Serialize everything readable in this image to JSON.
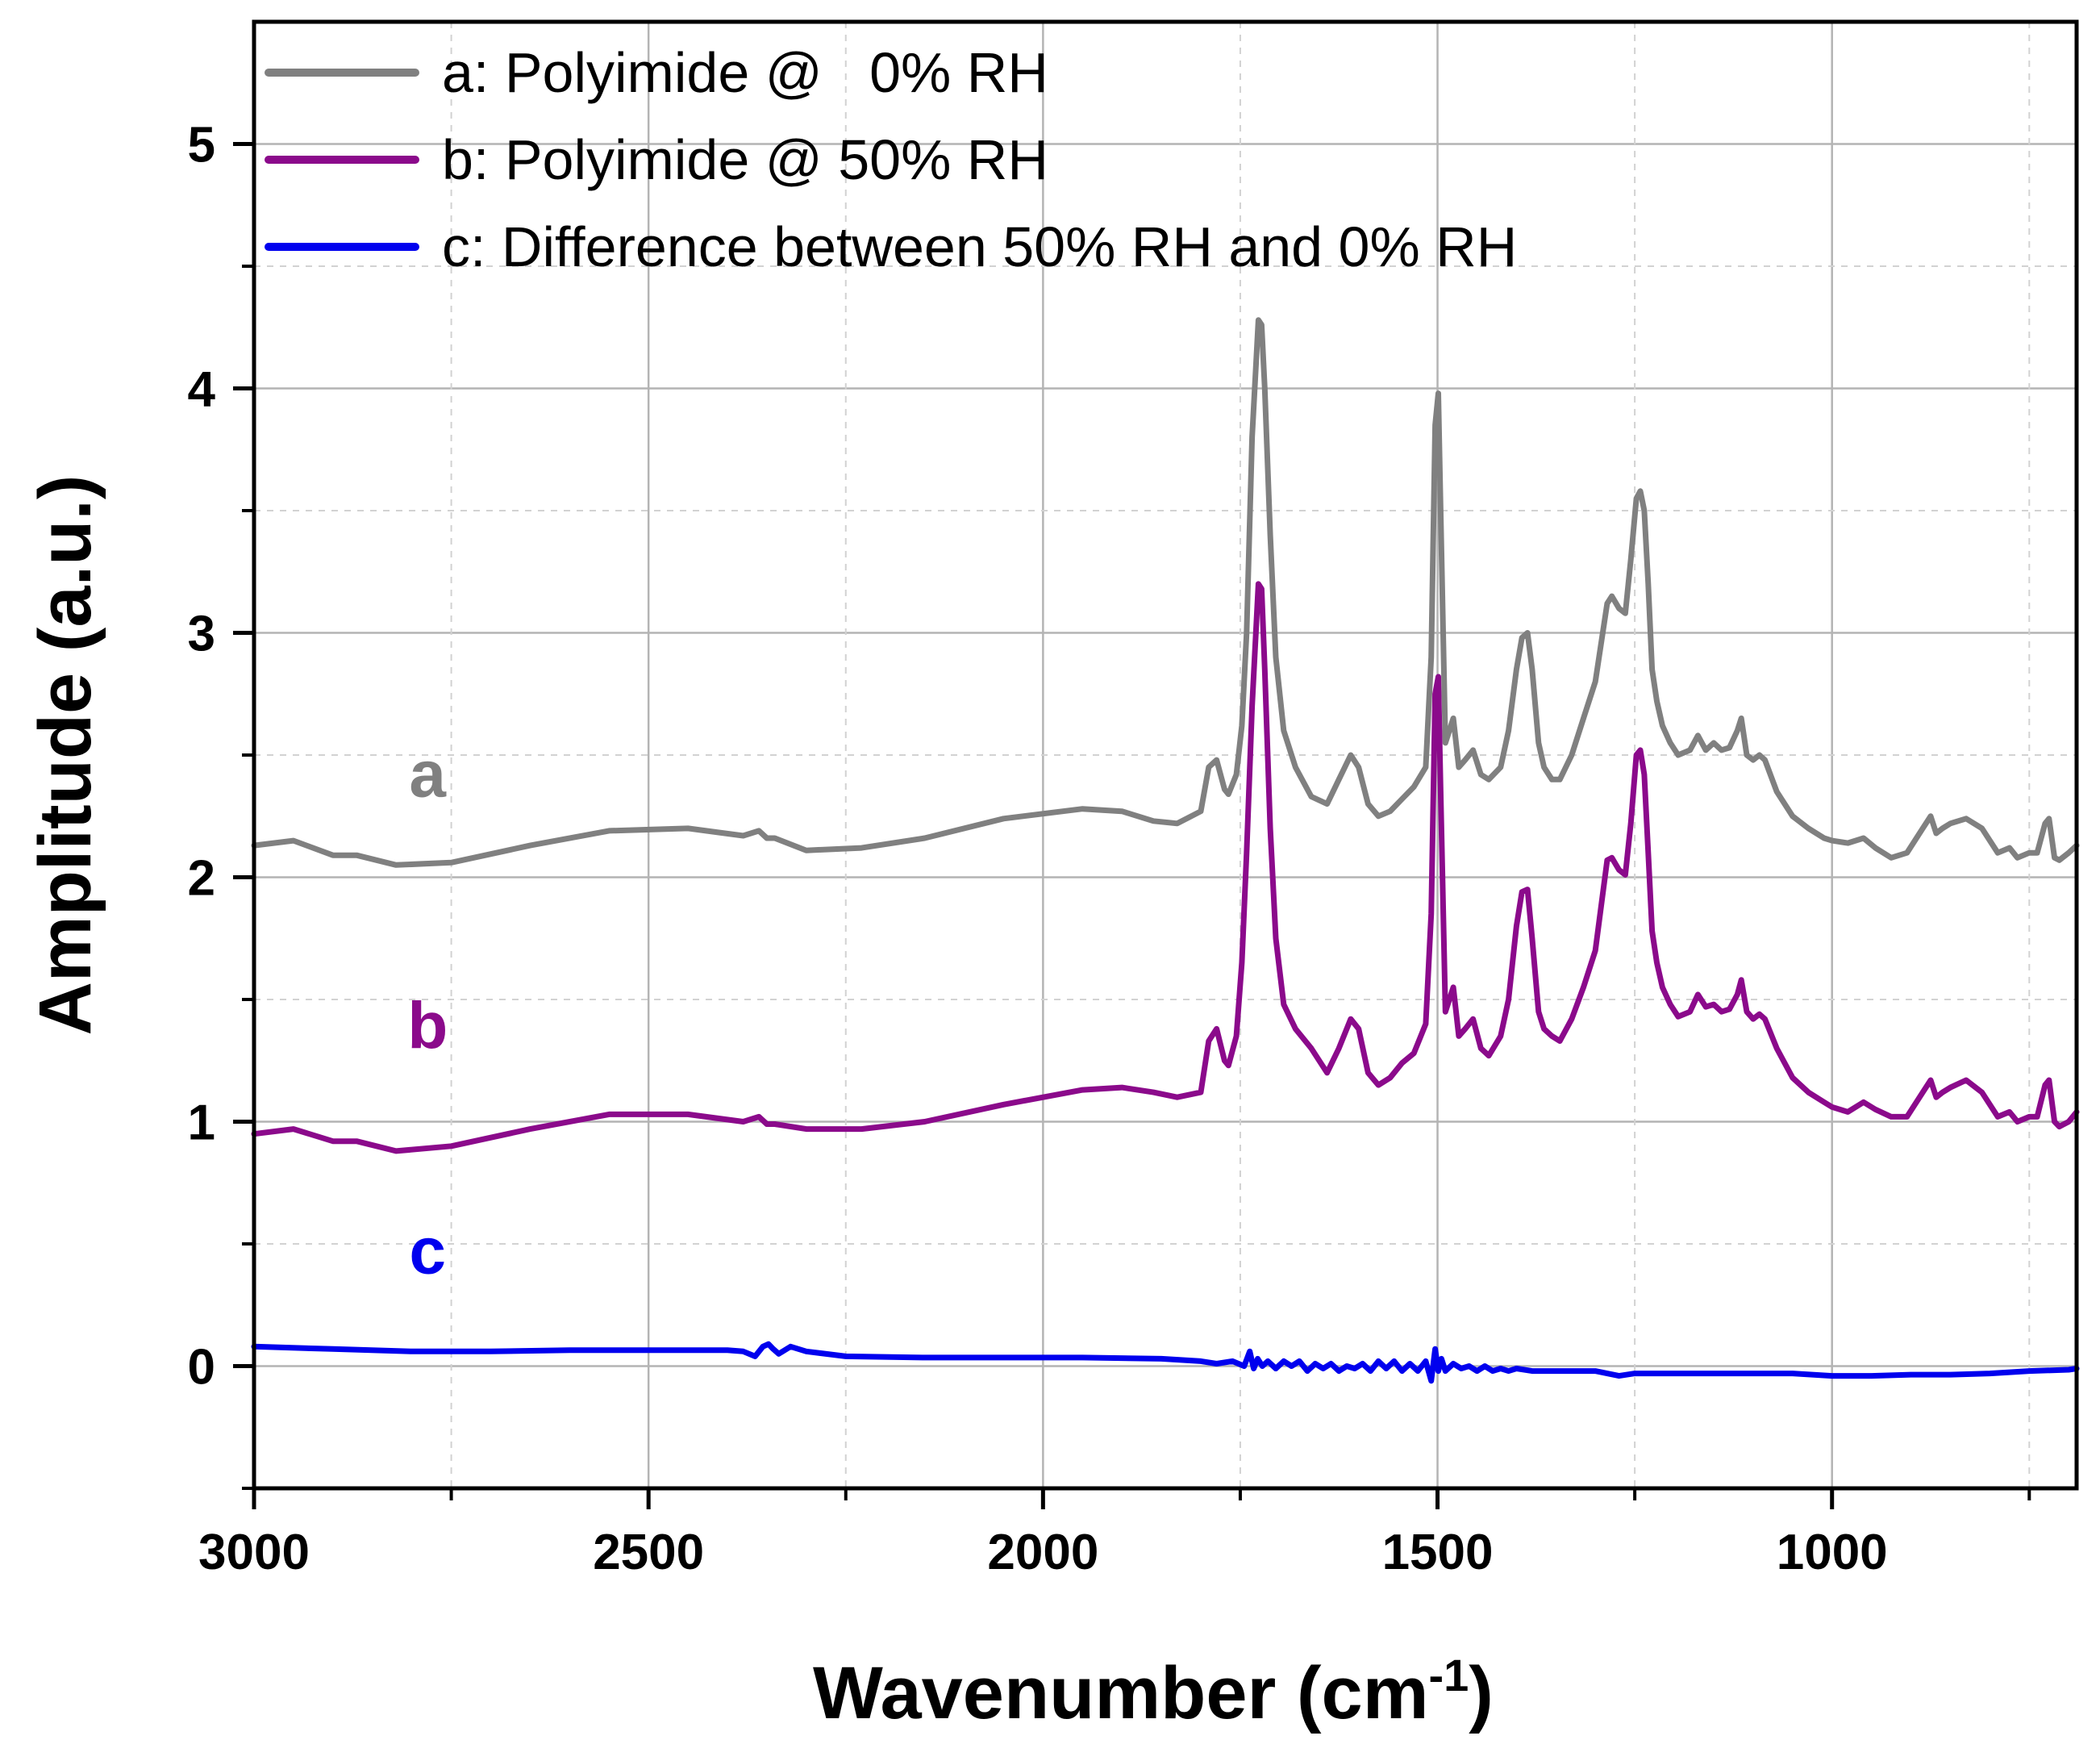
{
  "colors": {
    "a": "#808080",
    "b": "#8b0a8b",
    "c": "#0000ee",
    "grid": "#b4b4b4"
  },
  "chart_data": {
    "type": "line",
    "xlabel": "Wavenumber (cm",
    "xlabel_sup": "-1",
    "xlabel_end": ")",
    "ylabel": "Amplitude (a.u.)",
    "xlim": [
      3000,
      690
    ],
    "ylim": [
      -0.5,
      5.5
    ],
    "xticks": [
      3000,
      2500,
      2000,
      1500,
      1000
    ],
    "xtick_labels": [
      "3000",
      "2500",
      "2000",
      "1500",
      "1000"
    ],
    "yticks": [
      0,
      1,
      2,
      3,
      4,
      5
    ],
    "ytick_labels": [
      "0",
      "1",
      "2",
      "3",
      "4",
      "5"
    ],
    "grid": true,
    "legend_position": "top-left",
    "series": [
      {
        "name": "a",
        "label": "a: Polyimide @   0% RH",
        "color": "#808080",
        "x": [
          3000,
          2950,
          2900,
          2870,
          2820,
          2750,
          2650,
          2550,
          2450,
          2380,
          2360,
          2350,
          2340,
          2300,
          2230,
          2150,
          2050,
          1950,
          1900,
          1860,
          1830,
          1800,
          1790,
          1780,
          1770,
          1765,
          1755,
          1748,
          1742,
          1735,
          1727,
          1723,
          1719,
          1712,
          1705,
          1695,
          1680,
          1660,
          1640,
          1625,
          1610,
          1600,
          1588,
          1575,
          1560,
          1545,
          1530,
          1515,
          1508,
          1503,
          1499,
          1496,
          1490,
          1485,
          1480,
          1473,
          1465,
          1455,
          1445,
          1435,
          1420,
          1410,
          1400,
          1393,
          1386,
          1380,
          1372,
          1365,
          1355,
          1345,
          1330,
          1315,
          1300,
          1285,
          1279,
          1270,
          1262,
          1255,
          1248,
          1243,
          1238,
          1233,
          1228,
          1222,
          1215,
          1205,
          1195,
          1180,
          1170,
          1160,
          1150,
          1140,
          1130,
          1120,
          1115,
          1108,
          1100,
          1092,
          1085,
          1070,
          1050,
          1030,
          1010,
          1000,
          980,
          960,
          945,
          925,
          905,
          885,
          875,
          868,
          860,
          850,
          830,
          810,
          790,
          775,
          765,
          750,
          740,
          730,
          725,
          718,
          712,
          700,
          690
        ],
        "y": [
          2.13,
          2.15,
          2.09,
          2.09,
          2.05,
          2.06,
          2.13,
          2.19,
          2.2,
          2.17,
          2.19,
          2.16,
          2.16,
          2.11,
          2.12,
          2.16,
          2.24,
          2.28,
          2.27,
          2.23,
          2.22,
          2.27,
          2.45,
          2.48,
          2.36,
          2.34,
          2.42,
          2.62,
          3.0,
          3.8,
          4.28,
          4.26,
          4.0,
          3.4,
          2.9,
          2.6,
          2.45,
          2.33,
          2.3,
          2.4,
          2.5,
          2.45,
          2.3,
          2.25,
          2.27,
          2.32,
          2.37,
          2.45,
          2.9,
          3.85,
          3.98,
          3.5,
          2.55,
          2.6,
          2.65,
          2.45,
          2.48,
          2.52,
          2.42,
          2.4,
          2.45,
          2.6,
          2.85,
          2.98,
          3.0,
          2.85,
          2.55,
          2.45,
          2.4,
          2.4,
          2.5,
          2.65,
          2.8,
          3.12,
          3.15,
          3.1,
          3.08,
          3.3,
          3.55,
          3.58,
          3.5,
          3.2,
          2.85,
          2.72,
          2.62,
          2.55,
          2.5,
          2.52,
          2.58,
          2.52,
          2.55,
          2.52,
          2.53,
          2.6,
          2.65,
          2.5,
          2.48,
          2.5,
          2.48,
          2.35,
          2.25,
          2.2,
          2.16,
          2.15,
          2.14,
          2.16,
          2.12,
          2.08,
          2.1,
          2.2,
          2.25,
          2.18,
          2.2,
          2.22,
          2.24,
          2.2,
          2.1,
          2.12,
          2.08,
          2.1,
          2.1,
          2.22,
          2.24,
          2.08,
          2.07,
          2.1,
          2.13
        ]
      },
      {
        "name": "b",
        "label": "b: Polyimide @ 50% RH",
        "color": "#8b0a8b",
        "x": [
          3000,
          2950,
          2900,
          2870,
          2820,
          2750,
          2650,
          2550,
          2450,
          2380,
          2360,
          2350,
          2340,
          2300,
          2230,
          2150,
          2050,
          1950,
          1900,
          1860,
          1830,
          1800,
          1790,
          1780,
          1770,
          1765,
          1755,
          1748,
          1742,
          1735,
          1727,
          1723,
          1719,
          1712,
          1705,
          1695,
          1680,
          1660,
          1640,
          1625,
          1610,
          1600,
          1588,
          1575,
          1560,
          1545,
          1530,
          1515,
          1508,
          1503,
          1499,
          1496,
          1490,
          1485,
          1480,
          1473,
          1465,
          1455,
          1445,
          1435,
          1420,
          1410,
          1400,
          1393,
          1386,
          1380,
          1372,
          1365,
          1355,
          1345,
          1330,
          1315,
          1300,
          1285,
          1279,
          1270,
          1262,
          1255,
          1248,
          1243,
          1238,
          1233,
          1228,
          1222,
          1215,
          1205,
          1195,
          1180,
          1170,
          1160,
          1150,
          1140,
          1130,
          1120,
          1115,
          1108,
          1100,
          1092,
          1085,
          1070,
          1050,
          1030,
          1010,
          1000,
          980,
          960,
          945,
          925,
          905,
          885,
          875,
          868,
          860,
          850,
          830,
          810,
          790,
          775,
          765,
          750,
          740,
          730,
          725,
          718,
          712,
          700,
          690
        ],
        "y": [
          0.95,
          0.97,
          0.92,
          0.92,
          0.88,
          0.9,
          0.97,
          1.03,
          1.03,
          1.0,
          1.02,
          0.99,
          0.99,
          0.97,
          0.97,
          1.0,
          1.07,
          1.13,
          1.14,
          1.12,
          1.1,
          1.12,
          1.33,
          1.38,
          1.25,
          1.23,
          1.35,
          1.65,
          2.1,
          2.7,
          3.2,
          3.18,
          2.85,
          2.2,
          1.75,
          1.48,
          1.38,
          1.3,
          1.2,
          1.3,
          1.42,
          1.38,
          1.2,
          1.15,
          1.18,
          1.24,
          1.28,
          1.4,
          1.85,
          2.75,
          2.82,
          2.35,
          1.45,
          1.5,
          1.55,
          1.35,
          1.38,
          1.42,
          1.3,
          1.27,
          1.35,
          1.5,
          1.8,
          1.94,
          1.95,
          1.75,
          1.45,
          1.38,
          1.35,
          1.33,
          1.42,
          1.55,
          1.7,
          2.07,
          2.08,
          2.03,
          2.01,
          2.22,
          2.5,
          2.52,
          2.42,
          2.1,
          1.78,
          1.65,
          1.55,
          1.48,
          1.43,
          1.45,
          1.52,
          1.47,
          1.48,
          1.45,
          1.46,
          1.52,
          1.58,
          1.45,
          1.42,
          1.44,
          1.42,
          1.3,
          1.18,
          1.12,
          1.08,
          1.06,
          1.04,
          1.08,
          1.05,
          1.02,
          1.02,
          1.12,
          1.17,
          1.1,
          1.12,
          1.14,
          1.17,
          1.12,
          1.02,
          1.04,
          1.0,
          1.02,
          1.02,
          1.15,
          1.17,
          1.0,
          0.98,
          1.0,
          1.04
        ]
      },
      {
        "name": "c",
        "label": "c: Difference between 50% RH and 0% RH",
        "color": "#0000ee",
        "x": [
          3000,
          2900,
          2800,
          2700,
          2600,
          2500,
          2400,
          2380,
          2365,
          2355,
          2348,
          2342,
          2335,
          2320,
          2300,
          2250,
          2150,
          2050,
          1950,
          1850,
          1800,
          1780,
          1760,
          1745,
          1738,
          1733,
          1728,
          1722,
          1715,
          1705,
          1695,
          1685,
          1675,
          1665,
          1655,
          1645,
          1635,
          1625,
          1615,
          1605,
          1595,
          1585,
          1575,
          1565,
          1555,
          1545,
          1535,
          1525,
          1515,
          1508,
          1503,
          1499,
          1495,
          1490,
          1480,
          1470,
          1460,
          1450,
          1440,
          1430,
          1420,
          1410,
          1400,
          1380,
          1350,
          1300,
          1270,
          1250,
          1230,
          1200,
          1150,
          1100,
          1050,
          1000,
          950,
          900,
          850,
          800,
          750,
          700,
          690
        ],
        "y": [
          0.08,
          0.07,
          0.06,
          0.06,
          0.065,
          0.065,
          0.065,
          0.06,
          0.04,
          0.08,
          0.09,
          0.07,
          0.05,
          0.08,
          0.06,
          0.04,
          0.035,
          0.035,
          0.035,
          0.03,
          0.02,
          0.01,
          0.02,
          0.0,
          0.06,
          -0.01,
          0.03,
          0.0,
          0.02,
          -0.01,
          0.02,
          0.0,
          0.02,
          -0.02,
          0.01,
          -0.01,
          0.01,
          -0.02,
          0.0,
          -0.01,
          0.01,
          -0.02,
          0.02,
          -0.01,
          0.02,
          -0.02,
          0.01,
          -0.02,
          0.02,
          -0.06,
          0.07,
          -0.02,
          0.03,
          -0.02,
          0.01,
          -0.01,
          0.0,
          -0.02,
          0.0,
          -0.02,
          -0.01,
          -0.02,
          -0.01,
          -0.02,
          -0.02,
          -0.02,
          -0.04,
          -0.03,
          -0.03,
          -0.03,
          -0.03,
          -0.03,
          -0.03,
          -0.04,
          -0.04,
          -0.035,
          -0.035,
          -0.03,
          -0.02,
          -0.015,
          -0.01
        ]
      }
    ],
    "annotations": [
      {
        "text": "a",
        "color": "#808080",
        "x": 2780,
        "y": 2.33
      },
      {
        "text": "b",
        "color": "#8b0a8b",
        "x": 2780,
        "y": 1.3
      },
      {
        "text": "c",
        "color": "#0000ee",
        "x": 2780,
        "y": 0.38
      }
    ]
  }
}
